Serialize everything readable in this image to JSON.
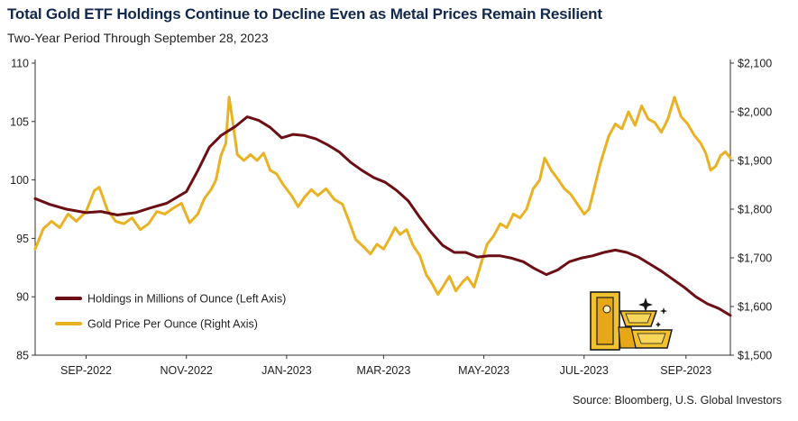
{
  "header": {
    "title": "Total Gold ETF Holdings Continue to Decline Even as Metal Prices Remain Resilient",
    "subtitle": "Two-Year Period Through September 28, 2023"
  },
  "footer": {
    "source": "Source: Bloomberg, U.S. Global Investors"
  },
  "colors": {
    "holdings": "#6b0f14",
    "gold": "#e8b223",
    "title": "#12284c",
    "axis": "#333333"
  },
  "icons": {
    "decoration": "gold-bars-icon"
  },
  "chart_data": {
    "type": "line",
    "xlabel": "",
    "ylabel": "",
    "xlim": [
      "2022-08-01",
      "2023-09-28"
    ],
    "x_ticks": [
      {
        "date": "2022-09-01",
        "label": "SEP-2022"
      },
      {
        "date": "2022-11-01",
        "label": "NOV-2022"
      },
      {
        "date": "2023-01-01",
        "label": "JAN-2023"
      },
      {
        "date": "2023-03-01",
        "label": "MAR-2023"
      },
      {
        "date": "2023-05-01",
        "label": "MAY-2023"
      },
      {
        "date": "2023-07-01",
        "label": "JUL-2023"
      },
      {
        "date": "2023-09-01",
        "label": "SEP-2023"
      }
    ],
    "y_left": {
      "ylim": [
        85,
        110
      ],
      "ticks": [
        "85",
        "90",
        "95",
        "100",
        "105",
        "110"
      ]
    },
    "y_right": {
      "ylim": [
        1500,
        2100
      ],
      "ticks": [
        "$1,500",
        "$1,600",
        "$1,700",
        "$1,800",
        "$1,900",
        "$2,000",
        "$2,100"
      ]
    },
    "legend_position": "bottom-left",
    "series": [
      {
        "name": "Holdings in Millions of Ounce (Left Axis)",
        "axis": "left",
        "color": "#6b0f14",
        "points": [
          [
            "2022-08-01",
            98.4
          ],
          [
            "2022-08-10",
            97.9
          ],
          [
            "2022-08-20",
            97.5
          ],
          [
            "2022-09-01",
            97.2
          ],
          [
            "2022-09-10",
            97.3
          ],
          [
            "2022-09-20",
            97.0
          ],
          [
            "2022-10-01",
            97.2
          ],
          [
            "2022-10-10",
            97.6
          ],
          [
            "2022-10-20",
            98.0
          ],
          [
            "2022-11-01",
            99.0
          ],
          [
            "2022-11-08",
            100.8
          ],
          [
            "2022-11-15",
            102.8
          ],
          [
            "2022-11-22",
            103.8
          ],
          [
            "2022-12-01",
            104.6
          ],
          [
            "2022-12-08",
            105.4
          ],
          [
            "2022-12-15",
            105.1
          ],
          [
            "2022-12-22",
            104.5
          ],
          [
            "2022-12-29",
            103.6
          ],
          [
            "2023-01-05",
            103.9
          ],
          [
            "2023-01-12",
            103.8
          ],
          [
            "2023-01-19",
            103.5
          ],
          [
            "2023-01-26",
            103.0
          ],
          [
            "2023-02-02",
            102.4
          ],
          [
            "2023-02-09",
            101.5
          ],
          [
            "2023-02-16",
            100.8
          ],
          [
            "2023-02-23",
            100.2
          ],
          [
            "2023-03-02",
            99.8
          ],
          [
            "2023-03-09",
            99.1
          ],
          [
            "2023-03-16",
            98.2
          ],
          [
            "2023-03-23",
            96.8
          ],
          [
            "2023-03-30",
            95.5
          ],
          [
            "2023-04-06",
            94.4
          ],
          [
            "2023-04-13",
            93.8
          ],
          [
            "2023-04-20",
            93.8
          ],
          [
            "2023-04-27",
            93.4
          ],
          [
            "2023-05-04",
            93.5
          ],
          [
            "2023-05-11",
            93.5
          ],
          [
            "2023-05-18",
            93.3
          ],
          [
            "2023-05-25",
            93.0
          ],
          [
            "2023-06-01",
            92.4
          ],
          [
            "2023-06-08",
            91.9
          ],
          [
            "2023-06-15",
            92.3
          ],
          [
            "2023-06-22",
            93.0
          ],
          [
            "2023-06-29",
            93.3
          ],
          [
            "2023-07-06",
            93.5
          ],
          [
            "2023-07-13",
            93.8
          ],
          [
            "2023-07-20",
            94.0
          ],
          [
            "2023-07-27",
            93.8
          ],
          [
            "2023-08-03",
            93.4
          ],
          [
            "2023-08-10",
            92.8
          ],
          [
            "2023-08-17",
            92.2
          ],
          [
            "2023-08-24",
            91.5
          ],
          [
            "2023-08-31",
            90.8
          ],
          [
            "2023-09-07",
            90.0
          ],
          [
            "2023-09-14",
            89.4
          ],
          [
            "2023-09-21",
            89.0
          ],
          [
            "2023-09-28",
            88.4
          ]
        ]
      },
      {
        "name": "Gold Price Per Ounce (Right Axis)",
        "axis": "right",
        "color": "#e8b223",
        "points": [
          [
            "2022-08-01",
            1718
          ],
          [
            "2022-08-06",
            1760
          ],
          [
            "2022-08-11",
            1775
          ],
          [
            "2022-08-16",
            1762
          ],
          [
            "2022-08-21",
            1790
          ],
          [
            "2022-08-26",
            1775
          ],
          [
            "2022-09-01",
            1795
          ],
          [
            "2022-09-06",
            1838
          ],
          [
            "2022-09-09",
            1845
          ],
          [
            "2022-09-14",
            1798
          ],
          [
            "2022-09-19",
            1775
          ],
          [
            "2022-09-24",
            1770
          ],
          [
            "2022-09-29",
            1782
          ],
          [
            "2022-10-04",
            1758
          ],
          [
            "2022-10-09",
            1770
          ],
          [
            "2022-10-14",
            1795
          ],
          [
            "2022-10-19",
            1790
          ],
          [
            "2022-10-24",
            1802
          ],
          [
            "2022-10-29",
            1812
          ],
          [
            "2022-11-03",
            1772
          ],
          [
            "2022-11-08",
            1790
          ],
          [
            "2022-11-12",
            1822
          ],
          [
            "2022-11-16",
            1840
          ],
          [
            "2022-11-19",
            1860
          ],
          [
            "2022-11-22",
            1910
          ],
          [
            "2022-11-25",
            1935
          ],
          [
            "2022-11-27",
            2030
          ],
          [
            "2022-11-29",
            1985
          ],
          [
            "2022-12-02",
            1912
          ],
          [
            "2022-12-06",
            1900
          ],
          [
            "2022-12-10",
            1912
          ],
          [
            "2022-12-14",
            1900
          ],
          [
            "2022-12-18",
            1915
          ],
          [
            "2022-12-22",
            1880
          ],
          [
            "2022-12-26",
            1872
          ],
          [
            "2022-12-30",
            1850
          ],
          [
            "2023-01-04",
            1828
          ],
          [
            "2023-01-08",
            1805
          ],
          [
            "2023-01-12",
            1825
          ],
          [
            "2023-01-16",
            1840
          ],
          [
            "2023-01-20",
            1828
          ],
          [
            "2023-01-25",
            1842
          ],
          [
            "2023-01-30",
            1820
          ],
          [
            "2023-02-04",
            1810
          ],
          [
            "2023-02-08",
            1775
          ],
          [
            "2023-02-12",
            1738
          ],
          [
            "2023-02-17",
            1722
          ],
          [
            "2023-02-21",
            1708
          ],
          [
            "2023-02-25",
            1728
          ],
          [
            "2023-03-01",
            1718
          ],
          [
            "2023-03-05",
            1742
          ],
          [
            "2023-03-08",
            1762
          ],
          [
            "2023-03-11",
            1748
          ],
          [
            "2023-03-15",
            1758
          ],
          [
            "2023-03-19",
            1725
          ],
          [
            "2023-03-23",
            1705
          ],
          [
            "2023-03-27",
            1665
          ],
          [
            "2023-03-30",
            1650
          ],
          [
            "2023-04-03",
            1625
          ],
          [
            "2023-04-06",
            1640
          ],
          [
            "2023-04-10",
            1662
          ],
          [
            "2023-04-14",
            1632
          ],
          [
            "2023-04-18",
            1650
          ],
          [
            "2023-04-21",
            1660
          ],
          [
            "2023-04-25",
            1640
          ],
          [
            "2023-04-29",
            1685
          ],
          [
            "2023-05-03",
            1728
          ],
          [
            "2023-05-07",
            1745
          ],
          [
            "2023-05-11",
            1770
          ],
          [
            "2023-05-15",
            1762
          ],
          [
            "2023-05-19",
            1790
          ],
          [
            "2023-05-23",
            1782
          ],
          [
            "2023-05-27",
            1800
          ],
          [
            "2023-05-31",
            1842
          ],
          [
            "2023-06-04",
            1860
          ],
          [
            "2023-06-07",
            1905
          ],
          [
            "2023-06-11",
            1880
          ],
          [
            "2023-06-15",
            1862
          ],
          [
            "2023-06-19",
            1842
          ],
          [
            "2023-06-23",
            1830
          ],
          [
            "2023-06-27",
            1810
          ],
          [
            "2023-07-01",
            1790
          ],
          [
            "2023-07-04",
            1800
          ],
          [
            "2023-07-07",
            1840
          ],
          [
            "2023-07-11",
            1895
          ],
          [
            "2023-07-16",
            1950
          ],
          [
            "2023-07-20",
            1975
          ],
          [
            "2023-07-24",
            1965
          ],
          [
            "2023-07-28",
            2000
          ],
          [
            "2023-08-01",
            1972
          ],
          [
            "2023-08-05",
            2012
          ],
          [
            "2023-08-09",
            1985
          ],
          [
            "2023-08-13",
            1978
          ],
          [
            "2023-08-17",
            1958
          ],
          [
            "2023-08-21",
            1985
          ],
          [
            "2023-08-25",
            2030
          ],
          [
            "2023-08-29",
            1990
          ],
          [
            "2023-09-02",
            1975
          ],
          [
            "2023-09-06",
            1952
          ],
          [
            "2023-09-10",
            1935
          ],
          [
            "2023-09-13",
            1915
          ],
          [
            "2023-09-16",
            1880
          ],
          [
            "2023-09-19",
            1888
          ],
          [
            "2023-09-22",
            1910
          ],
          [
            "2023-09-25",
            1918
          ],
          [
            "2023-09-28",
            1905
          ]
        ]
      }
    ]
  }
}
